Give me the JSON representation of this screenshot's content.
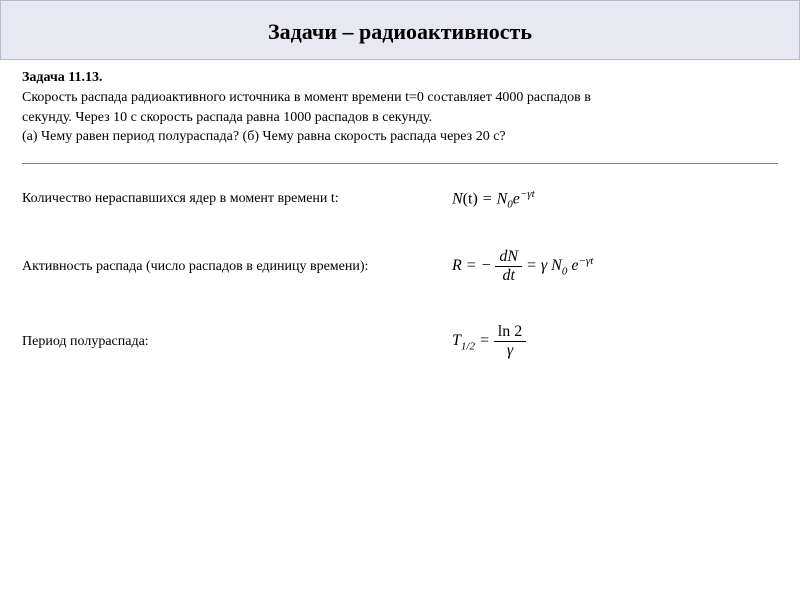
{
  "header": {
    "title": "Задачи – радиоактивность"
  },
  "problem": {
    "number": "Задача 11.13.",
    "line1": "Скорость распада радиоактивного источника в момент времени t=0 составляет 4000 распадов в",
    "line2": "секунду. Через 10 с скорость распада равна 1000 распадов в секунду.",
    "line3": "(а) Чему равен период полураспада? (б) Чему равна скорость распада через 20 с?"
  },
  "rows": {
    "r1_label": "Количество нераспавшихся ядер в момент времени t:",
    "r2_label": "Активность распада (число распадов в единицу времени):",
    "r3_label": "Период полураспада:"
  },
  "formulas": {
    "f1_left": "N",
    "f1_arg": "(t)",
    "f1_eq": " = ",
    "f1_n0_base": "N",
    "f1_n0_sub": "0",
    "f1_e": "e",
    "f1_exp": "−γt",
    "f2_R": "R",
    "f2_eq1": " = − ",
    "f2_dN": "dN",
    "f2_dt": "dt",
    "f2_eq2": " = γ ",
    "f2_n0_base": "N",
    "f2_n0_sub": "0",
    "f2_e": " e",
    "f2_exp": "−γt",
    "f3_T": "T",
    "f3_sub": "1/2",
    "f3_eq": " = ",
    "f3_num": "ln 2",
    "f3_den": "γ"
  },
  "styling": {
    "header_bg": "#e8e8f0",
    "header_border": "#b8b8d0",
    "body_bg": "#ffffff",
    "text_color": "#000000",
    "divider_color": "#808080",
    "title_fontsize": 22,
    "body_fontsize": 14,
    "formula_fontsize": 16
  }
}
